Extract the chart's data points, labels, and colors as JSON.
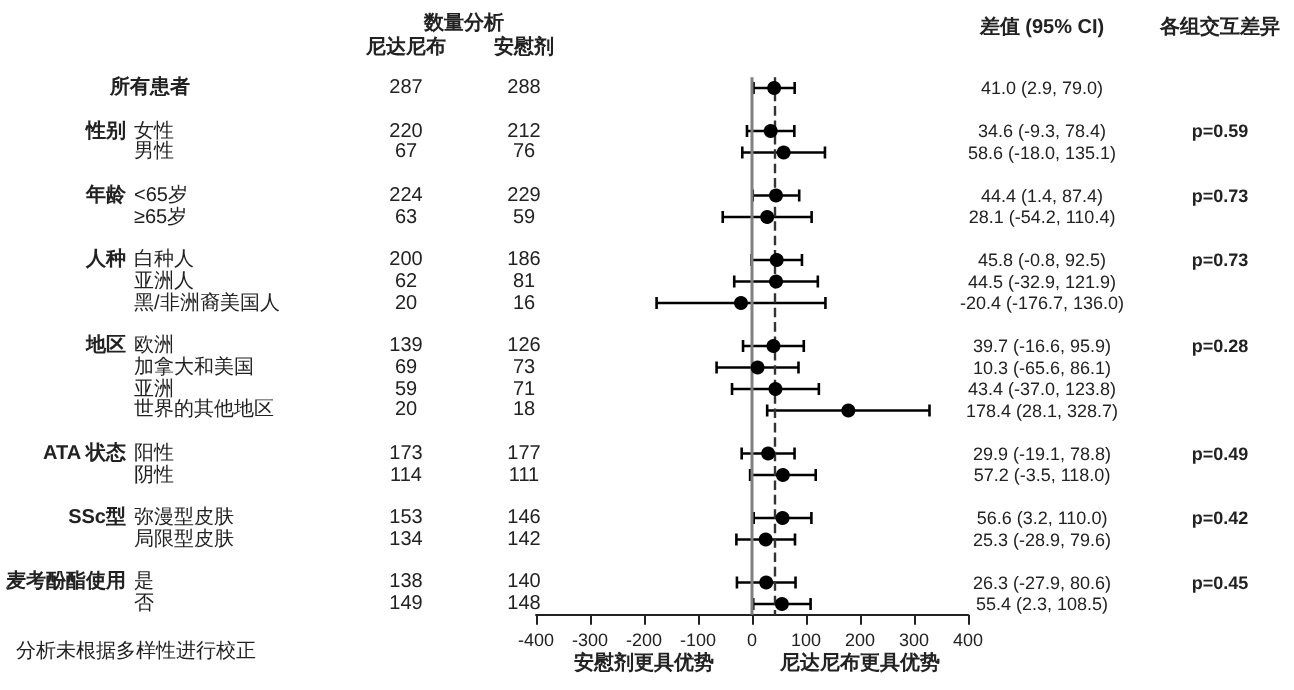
{
  "chart_data": [
    {
      "type": "other",
      "title": "数量分析",
      "categories": [
        "所有患者",
        null,
        "女性",
        "男性",
        null,
        "<65岁",
        "≥65岁",
        null,
        "白种人",
        "亚洲人",
        "黑/非洲裔美国人",
        null,
        "欧洲",
        "加拿大和美国",
        "亚洲",
        "世界的其他地区",
        null,
        "阳性",
        "阴性",
        null,
        "弥漫型皮肤",
        "局限型皮肤",
        null,
        "是",
        "否"
      ],
      "series": [
        {
          "name": "尼达尼布",
          "values": [
            287,
            null,
            220,
            67,
            null,
            224,
            63,
            null,
            200,
            62,
            20,
            null,
            139,
            69,
            59,
            20,
            null,
            173,
            114,
            null,
            153,
            134,
            null,
            138,
            149
          ]
        },
        {
          "name": "安慰剂",
          "values": [
            288,
            null,
            212,
            76,
            null,
            229,
            59,
            null,
            186,
            81,
            16,
            null,
            126,
            73,
            71,
            18,
            null,
            177,
            111,
            null,
            146,
            142,
            null,
            140,
            148
          ]
        }
      ],
      "data_labels": true,
      "annotations": [
        {
          "text": "性别",
          "y": "女性"
        },
        {
          "text": "年龄",
          "y": "<65岁"
        },
        {
          "text": "人种",
          "y": "白种人"
        },
        {
          "text": "地区",
          "y": "欧洲"
        },
        {
          "text": "ATA 状态",
          "y": "阳性"
        },
        {
          "text": "SSc型",
          "y": "弥漫型皮肤"
        },
        {
          "text": "麦考酚酯使用",
          "y": "是"
        },
        "分析未根据多样性进行校正"
      ]
    },
    {
      "type": "scatter",
      "orientation": "horizontal",
      "title": "差值 (95% CI)",
      "categories": [
        null,
        null,
        null,
        null,
        null,
        null,
        null,
        null,
        null,
        null,
        null,
        null,
        null,
        null,
        null,
        null,
        null,
        null,
        null,
        null,
        null,
        null,
        null,
        null,
        null
      ],
      "series": [
        {
          "color": "#000000",
          "values": [
            41.0,
            null,
            34.6,
            58.6,
            null,
            44.4,
            28.1,
            null,
            45.8,
            44.5,
            -20.4,
            null,
            39.7,
            10.3,
            43.4,
            178.4,
            null,
            29.9,
            57.2,
            null,
            56.6,
            25.3,
            null,
            26.3,
            55.4
          ],
          "errors": [
            [
              2.9,
              79.0
            ],
            null,
            [
              -9.3,
              78.4
            ],
            [
              -18.0,
              135.1
            ],
            null,
            [
              1.4,
              87.4
            ],
            [
              -54.2,
              110.4
            ],
            null,
            [
              -0.8,
              92.5
            ],
            [
              -32.9,
              121.9
            ],
            [
              -176.7,
              136.0
            ],
            null,
            [
              -16.6,
              95.9
            ],
            [
              -65.6,
              86.1
            ],
            [
              -37.0,
              123.8
            ],
            [
              28.1,
              328.7
            ],
            null,
            [
              -19.1,
              78.8
            ],
            [
              -3.5,
              118.0
            ],
            null,
            [
              3.2,
              110.0
            ],
            [
              -28.9,
              79.6
            ],
            null,
            [
              -27.9,
              80.6
            ],
            [
              2.3,
              108.5
            ]
          ]
        }
      ],
      "xlim": [
        -400,
        400
      ],
      "xticks": [
        -400,
        -300,
        -200,
        -100,
        0,
        100,
        200,
        300,
        400
      ],
      "ref_lines": [
        {
          "axis": "x",
          "value": 0,
          "color": "#808080",
          "line_style": "solid"
        },
        {
          "axis": "x",
          "value": 41.0,
          "color": "#333333",
          "line_style": "dashed"
        }
      ],
      "annotations": [
        "各组交互差异",
        "p=0.59",
        "p=0.73",
        "p=0.73",
        "p=0.28",
        "p=0.49",
        "p=0.42",
        "p=0.45",
        "安慰剂更具优势",
        "尼达尼布更具优势",
        "41.0 (2.9, 79.0)",
        "34.6 (-9.3, 78.4)",
        "58.6 (-18.0, 135.1)",
        "44.4 (1.4, 87.4)",
        "28.1 (-54.2, 110.4)",
        "45.8 (-0.8, 92.5)",
        "44.5 (-32.9, 121.9)",
        "-20.4 (-176.7, 136.0)",
        "39.7 (-16.6, 95.9)",
        "10.3 (-65.6, 86.1)",
        "43.4 (-37.0, 123.8)",
        "178.4 (28.1, 328.7)",
        "29.9 (-19.1, 78.8)",
        "57.2 (-3.5, 118.0)",
        "56.6 (3.2, 110.0)",
        "25.3 (-28.9, 79.6)",
        "26.3 (-27.9, 80.6)",
        "55.4 (2.3, 108.5)"
      ],
      "marker": "circle",
      "grid": false,
      "tick_labels": "x"
    }
  ]
}
